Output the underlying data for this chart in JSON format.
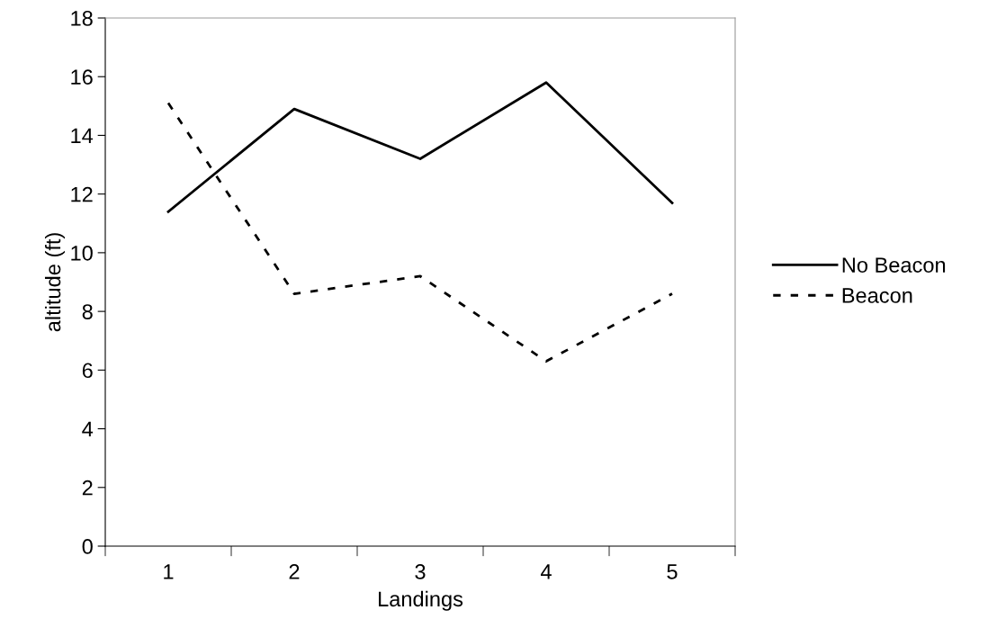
{
  "chart_data": {
    "type": "line",
    "xlabel": "Landings",
    "ylabel": "altitude (ft)",
    "categories": [
      "1",
      "2",
      "3",
      "4",
      "5"
    ],
    "series": [
      {
        "name": "No Beacon",
        "color": "#000000",
        "line_style": "solid",
        "values": [
          11.4,
          14.9,
          13.2,
          15.8,
          11.7
        ]
      },
      {
        "name": "Beacon",
        "color": "#000000",
        "line_style": "dotted",
        "values": [
          15.1,
          8.6,
          9.2,
          6.3,
          8.6
        ]
      }
    ],
    "ylim": [
      0,
      18
    ],
    "yticks": [
      0,
      2,
      4,
      6,
      8,
      10,
      12,
      14,
      16,
      18
    ],
    "grid": false,
    "legend": "right",
    "marker": "none"
  }
}
